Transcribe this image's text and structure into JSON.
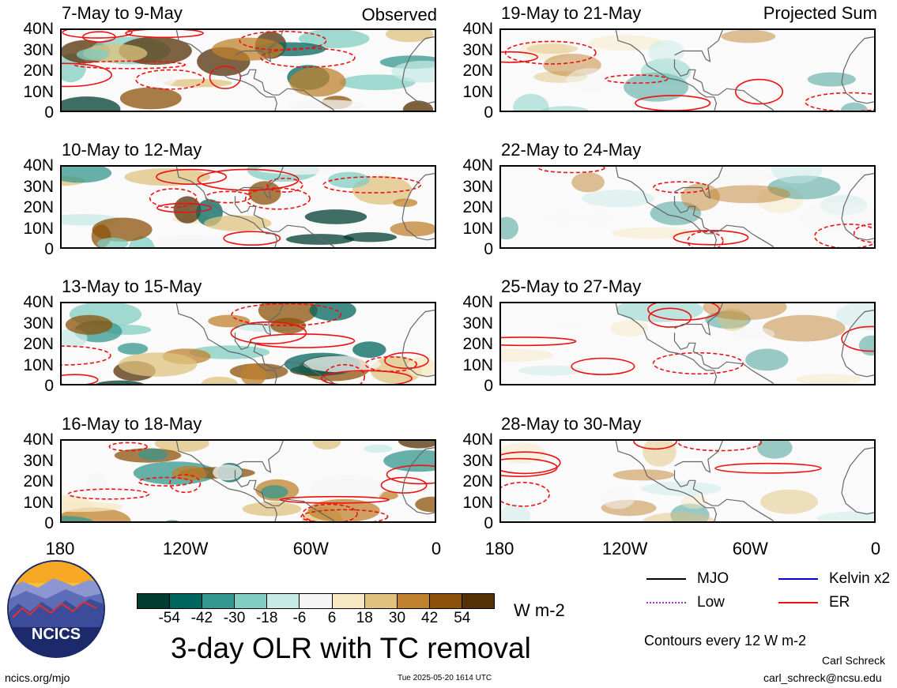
{
  "chart_data": {
    "type": "heatmap",
    "title": "3-day OLR with TC removal",
    "units": "W m-2",
    "colorbar": {
      "ticks": [
        "-54",
        "-42",
        "-30",
        "-18",
        "-6",
        "6",
        "18",
        "30",
        "42",
        "54"
      ],
      "colors": [
        "#003c30",
        "#01665e",
        "#35978f",
        "#80cdc1",
        "#c7eae5",
        "#f5f5f5",
        "#f6e8c3",
        "#dfc27d",
        "#bf812d",
        "#8c510a",
        "#543005"
      ]
    },
    "y_ticks": [
      "40N",
      "30N",
      "20N",
      "10N",
      "0"
    ],
    "x_ticks": [
      "180",
      "120W",
      "60W",
      "0"
    ],
    "x_range": [
      -180,
      0
    ],
    "y_range": [
      0,
      40
    ],
    "observed_label": "Observed",
    "projected_label": "Projected Sum",
    "panels": [
      {
        "title": "7-May to 9-May",
        "group": "observed"
      },
      {
        "title": "10-May to 12-May",
        "group": "observed"
      },
      {
        "title": "13-May to 15-May",
        "group": "observed"
      },
      {
        "title": "16-May to 18-May",
        "group": "observed"
      },
      {
        "title": "19-May to 21-May",
        "group": "projected"
      },
      {
        "title": "22-May to 24-May",
        "group": "projected"
      },
      {
        "title": "25-May to 27-May",
        "group": "projected"
      },
      {
        "title": "28-May to 30-May",
        "group": "projected"
      }
    ],
    "legend": [
      {
        "label": "MJO",
        "color": "#000000",
        "style": "solid"
      },
      {
        "label": "Kelvin x2",
        "color": "#0000cc",
        "style": "solid"
      },
      {
        "label": "Low",
        "color": "#9933cc",
        "style": "dotted"
      },
      {
        "label": "ER",
        "color": "#ee1111",
        "style": "solid"
      }
    ],
    "contour_note": "Contours every 12 W m-2"
  },
  "branding": {
    "logo_text": "NCICS",
    "url": "ncics.org/mjo",
    "timestamp": "Tue 2025-05-20 1614 UTC",
    "author": "Carl Schreck",
    "email": "carl_schreck@ncsu.edu"
  }
}
